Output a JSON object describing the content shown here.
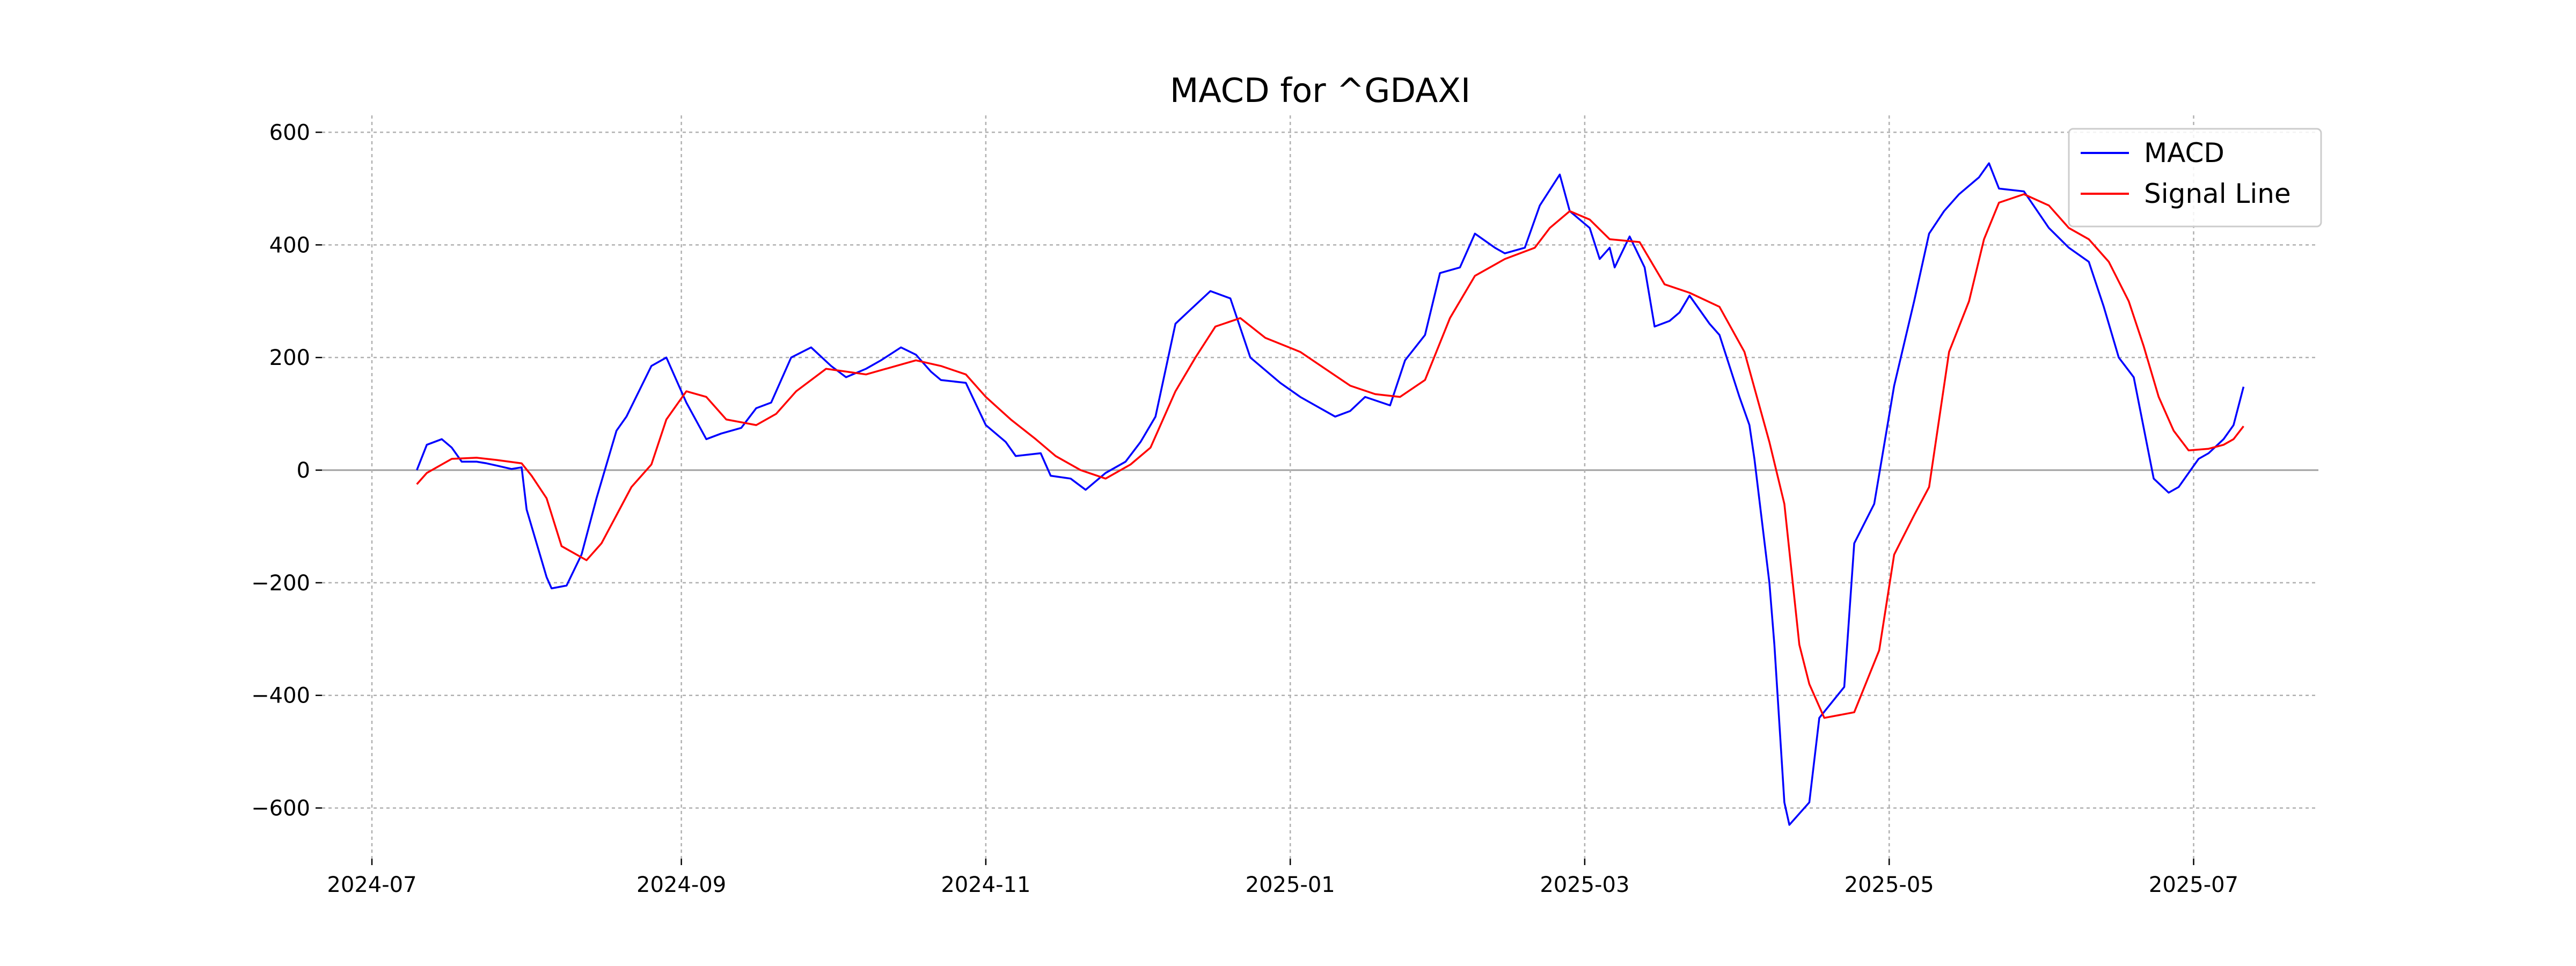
{
  "chart_data": {
    "type": "line",
    "title": "MACD for ^GDAXI",
    "xlabel": "",
    "ylabel": "",
    "xlim": [
      "2024-06-21",
      "2025-07-26"
    ],
    "ylim": [
      -690,
      630
    ],
    "x_ticks": [
      "2024-07-01",
      "2024-09-01",
      "2024-11-01",
      "2025-01-01",
      "2025-03-01",
      "2025-05-01",
      "2025-07-01"
    ],
    "x_tick_labels": [
      "2024-07",
      "2024-09",
      "2024-11",
      "2025-01",
      "2025-03",
      "2025-05",
      "2025-07"
    ],
    "y_ticks": [
      600,
      400,
      200,
      0,
      -200,
      -400,
      -600
    ],
    "y_tick_labels": [
      "600",
      "400",
      "200",
      "0",
      "−200",
      "−400",
      "−600"
    ],
    "grid": true,
    "zero_line": true,
    "legend_position": "top-right",
    "series": [
      {
        "name": "MACD",
        "color": "#0000ff",
        "points": [
          [
            "2024-07-10",
            0
          ],
          [
            "2024-07-12",
            45
          ],
          [
            "2024-07-15",
            55
          ],
          [
            "2024-07-17",
            40
          ],
          [
            "2024-07-19",
            15
          ],
          [
            "2024-07-22",
            15
          ],
          [
            "2024-07-24",
            12
          ],
          [
            "2024-07-26",
            8
          ],
          [
            "2024-07-29",
            2
          ],
          [
            "2024-07-31",
            5
          ],
          [
            "2024-08-01",
            -70
          ],
          [
            "2024-08-05",
            -190
          ],
          [
            "2024-08-06",
            -210
          ],
          [
            "2024-08-09",
            -205
          ],
          [
            "2024-08-12",
            -150
          ],
          [
            "2024-08-15",
            -50
          ],
          [
            "2024-08-19",
            70
          ],
          [
            "2024-08-21",
            95
          ],
          [
            "2024-08-26",
            185
          ],
          [
            "2024-08-29",
            200
          ],
          [
            "2024-09-02",
            120
          ],
          [
            "2024-09-06",
            55
          ],
          [
            "2024-09-09",
            65
          ],
          [
            "2024-09-13",
            75
          ],
          [
            "2024-09-16",
            110
          ],
          [
            "2024-09-19",
            120
          ],
          [
            "2024-09-23",
            200
          ],
          [
            "2024-09-27",
            218
          ],
          [
            "2024-10-01",
            185
          ],
          [
            "2024-10-04",
            165
          ],
          [
            "2024-10-08",
            180
          ],
          [
            "2024-10-11",
            195
          ],
          [
            "2024-10-15",
            218
          ],
          [
            "2024-10-18",
            205
          ],
          [
            "2024-10-21",
            175
          ],
          [
            "2024-10-23",
            160
          ],
          [
            "2024-10-28",
            155
          ],
          [
            "2024-11-01",
            80
          ],
          [
            "2024-11-05",
            50
          ],
          [
            "2024-11-07",
            25
          ],
          [
            "2024-11-12",
            30
          ],
          [
            "2024-11-14",
            -10
          ],
          [
            "2024-11-18",
            -15
          ],
          [
            "2024-11-21",
            -35
          ],
          [
            "2024-11-25",
            -5
          ],
          [
            "2024-11-29",
            15
          ],
          [
            "2024-12-02",
            50
          ],
          [
            "2024-12-05",
            95
          ],
          [
            "2024-12-09",
            260
          ],
          [
            "2024-12-12",
            285
          ],
          [
            "2024-12-16",
            318
          ],
          [
            "2024-12-20",
            305
          ],
          [
            "2024-12-24",
            200
          ],
          [
            "2024-12-30",
            155
          ],
          [
            "2025-01-03",
            130
          ],
          [
            "2025-01-07",
            110
          ],
          [
            "2025-01-10",
            95
          ],
          [
            "2025-01-13",
            105
          ],
          [
            "2025-01-16",
            130
          ],
          [
            "2025-01-21",
            115
          ],
          [
            "2025-01-24",
            195
          ],
          [
            "2025-01-28",
            240
          ],
          [
            "2025-01-31",
            350
          ],
          [
            "2025-02-04",
            360
          ],
          [
            "2025-02-07",
            420
          ],
          [
            "2025-02-11",
            395
          ],
          [
            "2025-02-13",
            385
          ],
          [
            "2025-02-17",
            395
          ],
          [
            "2025-02-20",
            470
          ],
          [
            "2025-02-24",
            525
          ],
          [
            "2025-02-26",
            460
          ],
          [
            "2025-03-02",
            430
          ],
          [
            "2025-03-04",
            375
          ],
          [
            "2025-03-06",
            395
          ],
          [
            "2025-03-07",
            360
          ],
          [
            "2025-03-10",
            415
          ],
          [
            "2025-03-13",
            360
          ],
          [
            "2025-03-15",
            255
          ],
          [
            "2025-03-18",
            265
          ],
          [
            "2025-03-20",
            280
          ],
          [
            "2025-03-22",
            310
          ],
          [
            "2025-03-26",
            260
          ],
          [
            "2025-03-28",
            240
          ],
          [
            "2025-04-01",
            130
          ],
          [
            "2025-04-03",
            80
          ],
          [
            "2025-04-04",
            20
          ],
          [
            "2025-04-07",
            -200
          ],
          [
            "2025-04-08",
            -310
          ],
          [
            "2025-04-10",
            -590
          ],
          [
            "2025-04-11",
            -630
          ],
          [
            "2025-04-15",
            -590
          ],
          [
            "2025-04-17",
            -440
          ],
          [
            "2025-04-22",
            -385
          ],
          [
            "2025-04-24",
            -130
          ],
          [
            "2025-04-28",
            -60
          ],
          [
            "2025-05-02",
            150
          ],
          [
            "2025-05-06",
            300
          ],
          [
            "2025-05-09",
            420
          ],
          [
            "2025-05-12",
            460
          ],
          [
            "2025-05-15",
            490
          ],
          [
            "2025-05-19",
            520
          ],
          [
            "2025-05-21",
            545
          ],
          [
            "2025-05-23",
            500
          ],
          [
            "2025-05-28",
            495
          ],
          [
            "2025-06-02",
            430
          ],
          [
            "2025-06-06",
            395
          ],
          [
            "2025-06-10",
            370
          ],
          [
            "2025-06-13",
            290
          ],
          [
            "2025-06-16",
            200
          ],
          [
            "2025-06-19",
            165
          ],
          [
            "2025-06-23",
            -15
          ],
          [
            "2025-06-26",
            -40
          ],
          [
            "2025-06-28",
            -30
          ],
          [
            "2025-07-02",
            20
          ],
          [
            "2025-07-04",
            30
          ],
          [
            "2025-07-07",
            55
          ],
          [
            "2025-07-09",
            80
          ],
          [
            "2025-07-11",
            148
          ]
        ]
      },
      {
        "name": "Signal Line",
        "color": "#ff0000",
        "points": [
          [
            "2024-07-10",
            -25
          ],
          [
            "2024-07-12",
            -5
          ],
          [
            "2024-07-15",
            10
          ],
          [
            "2024-07-17",
            20
          ],
          [
            "2024-07-22",
            22
          ],
          [
            "2024-07-26",
            18
          ],
          [
            "2024-07-31",
            12
          ],
          [
            "2024-08-02",
            -10
          ],
          [
            "2024-08-05",
            -50
          ],
          [
            "2024-08-08",
            -135
          ],
          [
            "2024-08-13",
            -160
          ],
          [
            "2024-08-16",
            -130
          ],
          [
            "2024-08-19",
            -80
          ],
          [
            "2024-08-22",
            -30
          ],
          [
            "2024-08-26",
            10
          ],
          [
            "2024-08-29",
            90
          ],
          [
            "2024-09-02",
            140
          ],
          [
            "2024-09-06",
            130
          ],
          [
            "2024-09-10",
            90
          ],
          [
            "2024-09-16",
            80
          ],
          [
            "2024-09-20",
            100
          ],
          [
            "2024-09-24",
            140
          ],
          [
            "2024-09-30",
            180
          ],
          [
            "2024-10-04",
            175
          ],
          [
            "2024-10-08",
            170
          ],
          [
            "2024-10-14",
            185
          ],
          [
            "2024-10-18",
            195
          ],
          [
            "2024-10-23",
            185
          ],
          [
            "2024-10-28",
            170
          ],
          [
            "2024-11-01",
            130
          ],
          [
            "2024-11-06",
            90
          ],
          [
            "2024-11-11",
            55
          ],
          [
            "2024-11-15",
            25
          ],
          [
            "2024-11-20",
            0
          ],
          [
            "2024-11-25",
            -15
          ],
          [
            "2024-11-30",
            10
          ],
          [
            "2024-12-04",
            40
          ],
          [
            "2024-12-09",
            140
          ],
          [
            "2024-12-13",
            200
          ],
          [
            "2024-12-17",
            255
          ],
          [
            "2024-12-22",
            270
          ],
          [
            "2024-12-27",
            235
          ],
          [
            "2025-01-03",
            210
          ],
          [
            "2025-01-08",
            180
          ],
          [
            "2025-01-13",
            150
          ],
          [
            "2025-01-18",
            135
          ],
          [
            "2025-01-23",
            130
          ],
          [
            "2025-01-28",
            160
          ],
          [
            "2025-02-02",
            270
          ],
          [
            "2025-02-07",
            345
          ],
          [
            "2025-02-13",
            375
          ],
          [
            "2025-02-19",
            395
          ],
          [
            "2025-02-22",
            430
          ],
          [
            "2025-02-26",
            460
          ],
          [
            "2025-03-02",
            445
          ],
          [
            "2025-03-06",
            410
          ],
          [
            "2025-03-12",
            405
          ],
          [
            "2025-03-17",
            330
          ],
          [
            "2025-03-22",
            315
          ],
          [
            "2025-03-28",
            290
          ],
          [
            "2025-04-02",
            210
          ],
          [
            "2025-04-07",
            50
          ],
          [
            "2025-04-10",
            -60
          ],
          [
            "2025-04-13",
            -310
          ],
          [
            "2025-04-15",
            -380
          ],
          [
            "2025-04-18",
            -440
          ],
          [
            "2025-04-24",
            -430
          ],
          [
            "2025-04-29",
            -320
          ],
          [
            "2025-05-02",
            -150
          ],
          [
            "2025-05-06",
            -80
          ],
          [
            "2025-05-09",
            -30
          ],
          [
            "2025-05-13",
            210
          ],
          [
            "2025-05-17",
            300
          ],
          [
            "2025-05-20",
            410
          ],
          [
            "2025-05-23",
            475
          ],
          [
            "2025-05-28",
            490
          ],
          [
            "2025-06-02",
            470
          ],
          [
            "2025-06-06",
            430
          ],
          [
            "2025-06-10",
            410
          ],
          [
            "2025-06-14",
            370
          ],
          [
            "2025-06-18",
            300
          ],
          [
            "2025-06-21",
            220
          ],
          [
            "2025-06-24",
            130
          ],
          [
            "2025-06-27",
            70
          ],
          [
            "2025-06-30",
            35
          ],
          [
            "2025-07-04",
            38
          ],
          [
            "2025-07-07",
            45
          ],
          [
            "2025-07-09",
            55
          ],
          [
            "2025-07-11",
            78
          ]
        ]
      }
    ]
  }
}
